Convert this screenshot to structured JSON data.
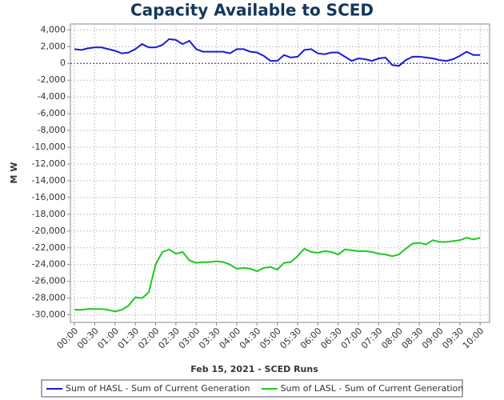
{
  "chart_data": {
    "type": "line",
    "title": "Capacity Available to SCED",
    "x_label": "Feb 15, 2021 - SCED Runs",
    "y_label": "M W",
    "grid": true,
    "legend": "bottom",
    "x": [
      0,
      10,
      20,
      30,
      40,
      50,
      60,
      70,
      80,
      90,
      100,
      110,
      120,
      130,
      140,
      150,
      160,
      170,
      180,
      190,
      200,
      210,
      220,
      230,
      240,
      250,
      260,
      270,
      280,
      290,
      300,
      310,
      320,
      330,
      340,
      350,
      360,
      370,
      380,
      390,
      400,
      410,
      420,
      430,
      440,
      450,
      460,
      470,
      480,
      490,
      500,
      510,
      520,
      530,
      540,
      550,
      560,
      570,
      580,
      590,
      600
    ],
    "xlim": [
      -6,
      614
    ],
    "xticks": [
      {
        "value": 0,
        "label": "00:00"
      },
      {
        "value": 30,
        "label": "00:30"
      },
      {
        "value": 60,
        "label": "01:00"
      },
      {
        "value": 90,
        "label": "01:30"
      },
      {
        "value": 120,
        "label": "02:00"
      },
      {
        "value": 150,
        "label": "02:30"
      },
      {
        "value": 180,
        "label": "03:00"
      },
      {
        "value": 210,
        "label": "03:30"
      },
      {
        "value": 240,
        "label": "04:00"
      },
      {
        "value": 270,
        "label": "04:30"
      },
      {
        "value": 300,
        "label": "05:00"
      },
      {
        "value": 330,
        "label": "05:30"
      },
      {
        "value": 360,
        "label": "06:00"
      },
      {
        "value": 390,
        "label": "06:30"
      },
      {
        "value": 420,
        "label": "07:00"
      },
      {
        "value": 450,
        "label": "07:30"
      },
      {
        "value": 480,
        "label": "08:00"
      },
      {
        "value": 510,
        "label": "08:30"
      },
      {
        "value": 540,
        "label": "09:00"
      },
      {
        "value": 570,
        "label": "09:30"
      },
      {
        "value": 600,
        "label": "10:00"
      }
    ],
    "ylim": [
      -30900,
      4700
    ],
    "yticks": [
      {
        "value": 4000,
        "label": "4,000"
      },
      {
        "value": 2000,
        "label": "2,000"
      },
      0,
      {
        "value": -2000,
        "label": "-2,000"
      },
      {
        "value": -4000,
        "label": "-4,000"
      },
      {
        "value": -6000,
        "label": "-6,000"
      },
      {
        "value": -8000,
        "label": "-8,000"
      },
      {
        "value": -10000,
        "label": "-10,000"
      },
      {
        "value": -12000,
        "label": "-12,000"
      },
      {
        "value": -14000,
        "label": "-14,000"
      },
      {
        "value": -16000,
        "label": "-16,000"
      },
      {
        "value": -18000,
        "label": "-18,000"
      },
      {
        "value": -20000,
        "label": "-20,000"
      },
      {
        "value": -22000,
        "label": "-22,000"
      },
      {
        "value": -24000,
        "label": "-24,000"
      },
      {
        "value": -26000,
        "label": "-26,000"
      },
      {
        "value": -28000,
        "label": "-28,000"
      },
      {
        "value": -30000,
        "label": "-30,000"
      }
    ],
    "series": [
      {
        "name": "Sum of HASL - Sum of Current Generation",
        "color": "#1a1adc",
        "values": [
          1700,
          1600,
          1800,
          1900,
          1900,
          1700,
          1500,
          1200,
          1300,
          1700,
          2300,
          1900,
          1900,
          2200,
          2900,
          2800,
          2300,
          2700,
          1700,
          1400,
          1400,
          1400,
          1400,
          1200,
          1700,
          1700,
          1400,
          1300,
          900,
          300,
          300,
          1000,
          700,
          800,
          1600,
          1700,
          1200,
          1100,
          1300,
          1300,
          800,
          300,
          600,
          500,
          300,
          600,
          700,
          -200,
          -300,
          400,
          800,
          800,
          700,
          600,
          400,
          300,
          500,
          900,
          1400,
          1000,
          1000
        ]
      },
      {
        "name": "Sum of LASL - Sum of Current Generation",
        "color": "#1ec81e",
        "values": [
          -29400,
          -29400,
          -29300,
          -29300,
          -29300,
          -29400,
          -29600,
          -29400,
          -28900,
          -27900,
          -28000,
          -27300,
          -24000,
          -22500,
          -22200,
          -22700,
          -22500,
          -23500,
          -23800,
          -23700,
          -23700,
          -23600,
          -23700,
          -24000,
          -24500,
          -24400,
          -24500,
          -24800,
          -24400,
          -24300,
          -24600,
          -23800,
          -23700,
          -23000,
          -22100,
          -22500,
          -22600,
          -22400,
          -22500,
          -22800,
          -22200,
          -22300,
          -22400,
          -22400,
          -22500,
          -22700,
          -22800,
          -23000,
          -22800,
          -22100,
          -21500,
          -21400,
          -21600,
          -21100,
          -21300,
          -21300,
          -21200,
          -21100,
          -20800,
          -21000,
          -20800
        ]
      }
    ]
  }
}
